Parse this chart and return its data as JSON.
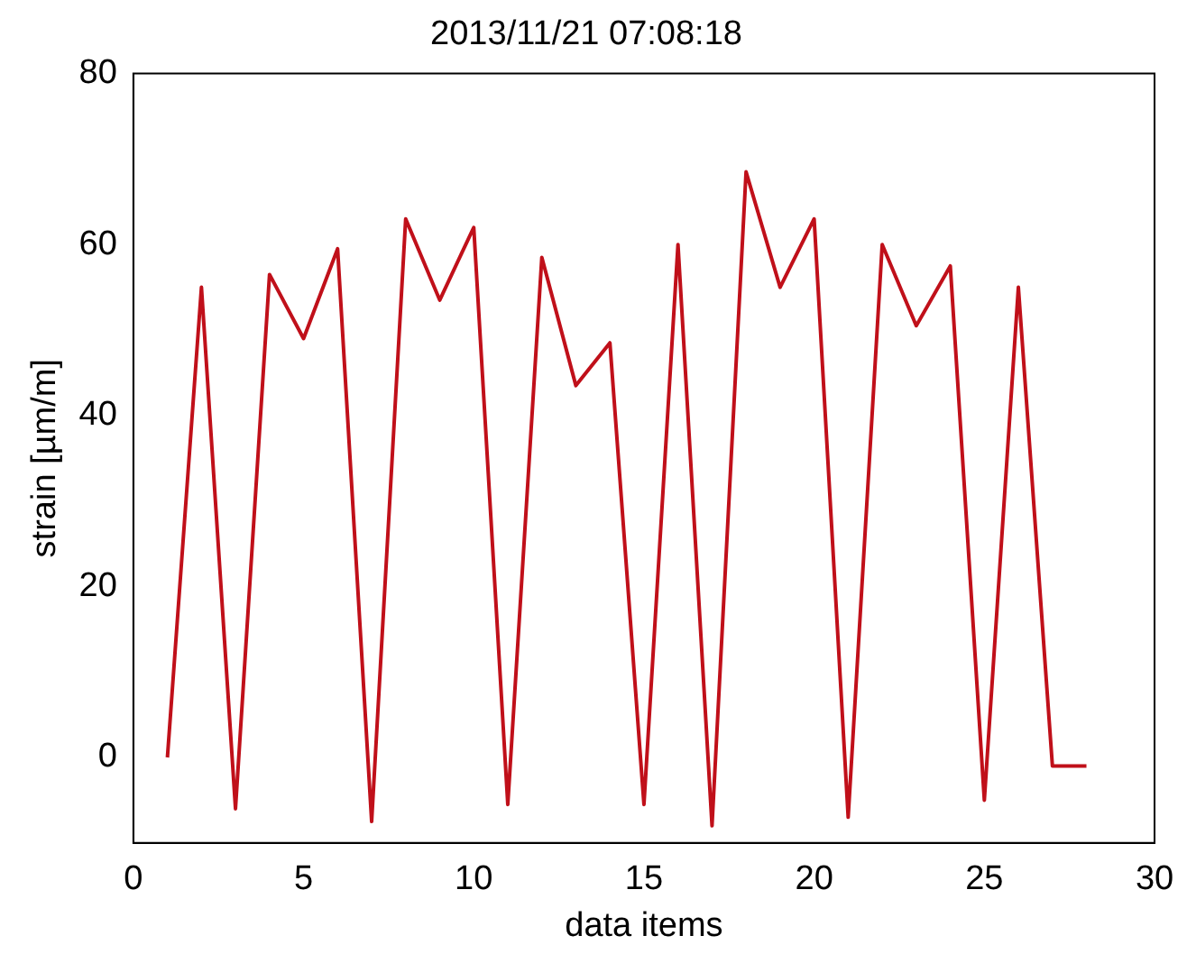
{
  "chart_data": {
    "type": "line",
    "title": "2013/11/21 07:08:18",
    "xlabel": "data items",
    "ylabel": "strain [µm/m]",
    "x": [
      1,
      2,
      3,
      4,
      5,
      6,
      7,
      8,
      9,
      10,
      11,
      12,
      13,
      14,
      15,
      16,
      17,
      18,
      19,
      20,
      21,
      22,
      23,
      24,
      25,
      26,
      27,
      28
    ],
    "series": [
      {
        "color": "#c0101a",
        "values": [
          0,
          55,
          -6,
          56.5,
          49,
          59.5,
          -7.5,
          63,
          53.5,
          62,
          -5.5,
          58.5,
          43.5,
          48.5,
          -5.5,
          60,
          -8,
          68.5,
          55,
          63,
          -7,
          60,
          50.5,
          57.5,
          -5,
          55,
          -1,
          -1
        ]
      }
    ],
    "xlim": [
      0,
      30
    ],
    "xticks": [
      0,
      5,
      10,
      15,
      20,
      25,
      30
    ],
    "ylim": [
      -10,
      80
    ],
    "yticks": [
      0,
      20,
      40,
      60,
      80
    ],
    "grid": false,
    "legend": false,
    "marker": "none",
    "line_style": "solid"
  }
}
